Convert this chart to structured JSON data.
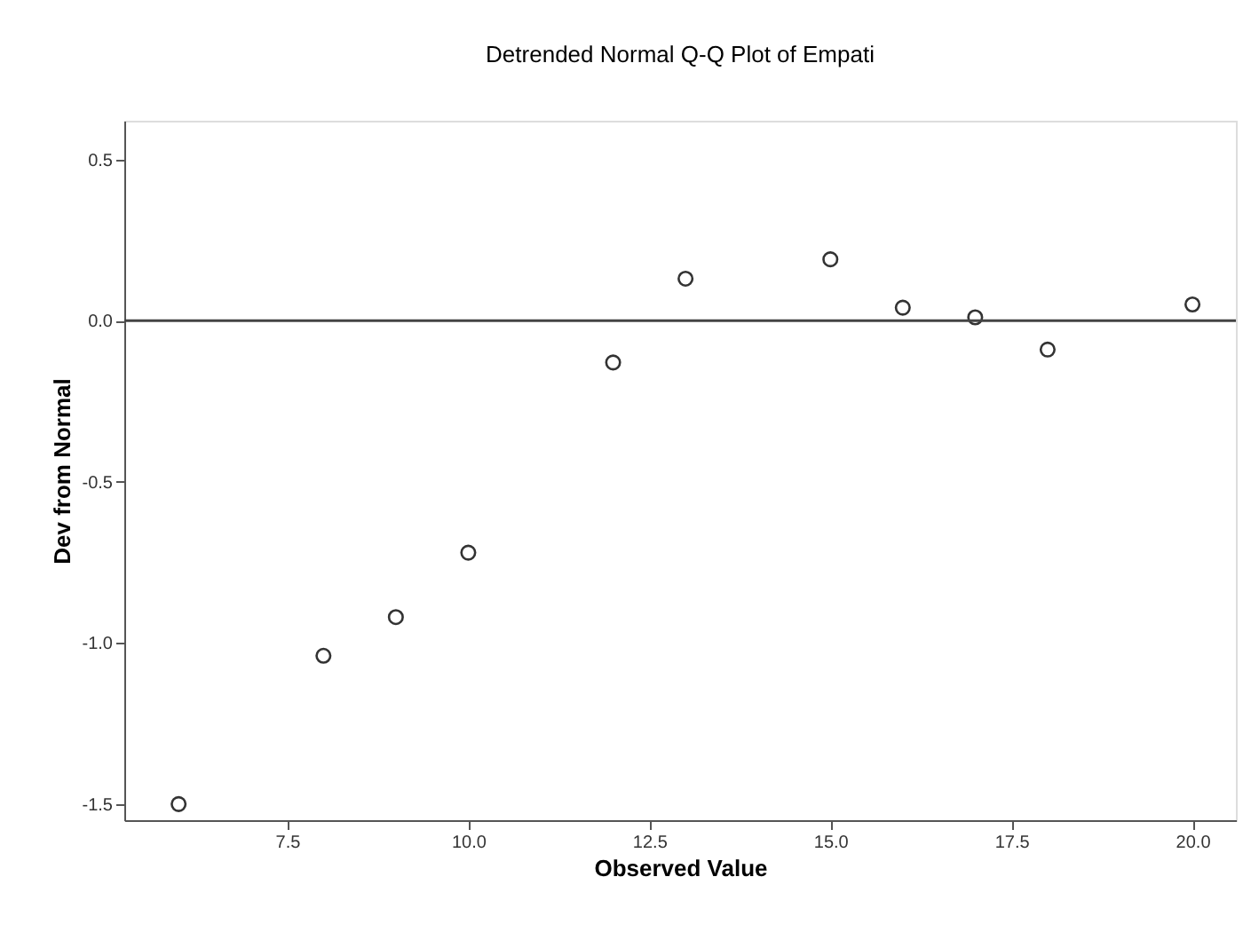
{
  "chart_data": {
    "type": "scatter",
    "title": "Detrended Normal Q-Q Plot of Empati",
    "xlabel": "Observed Value",
    "ylabel": "Dev from Normal",
    "x": [
      6.0,
      8.0,
      9.0,
      10.0,
      12.0,
      13.0,
      15.0,
      16.0,
      17.0,
      18.0,
      20.0
    ],
    "values": [
      -1.5,
      -1.04,
      -0.92,
      -0.72,
      -0.13,
      0.13,
      0.19,
      0.04,
      0.01,
      -0.09,
      0.05
    ],
    "color": "#333333",
    "marker": "circle",
    "xlim": [
      5.25,
      20.6
    ],
    "ylim": [
      -1.55,
      0.62
    ],
    "xticks": [
      7.5,
      {
        "value": 10,
        "label": "10.0"
      },
      12.5,
      {
        "value": 15,
        "label": "15.0"
      },
      17.5,
      {
        "value": 20,
        "label": "20.0"
      }
    ],
    "yticks": [
      0.5,
      {
        "value": 0,
        "label": "0.0"
      },
      -0.5,
      {
        "value": -1,
        "label": "-1.0"
      },
      -1.5
    ],
    "ref_lines": [
      {
        "axis": "y",
        "value": 0,
        "color": "#444444"
      }
    ],
    "grid": false
  }
}
